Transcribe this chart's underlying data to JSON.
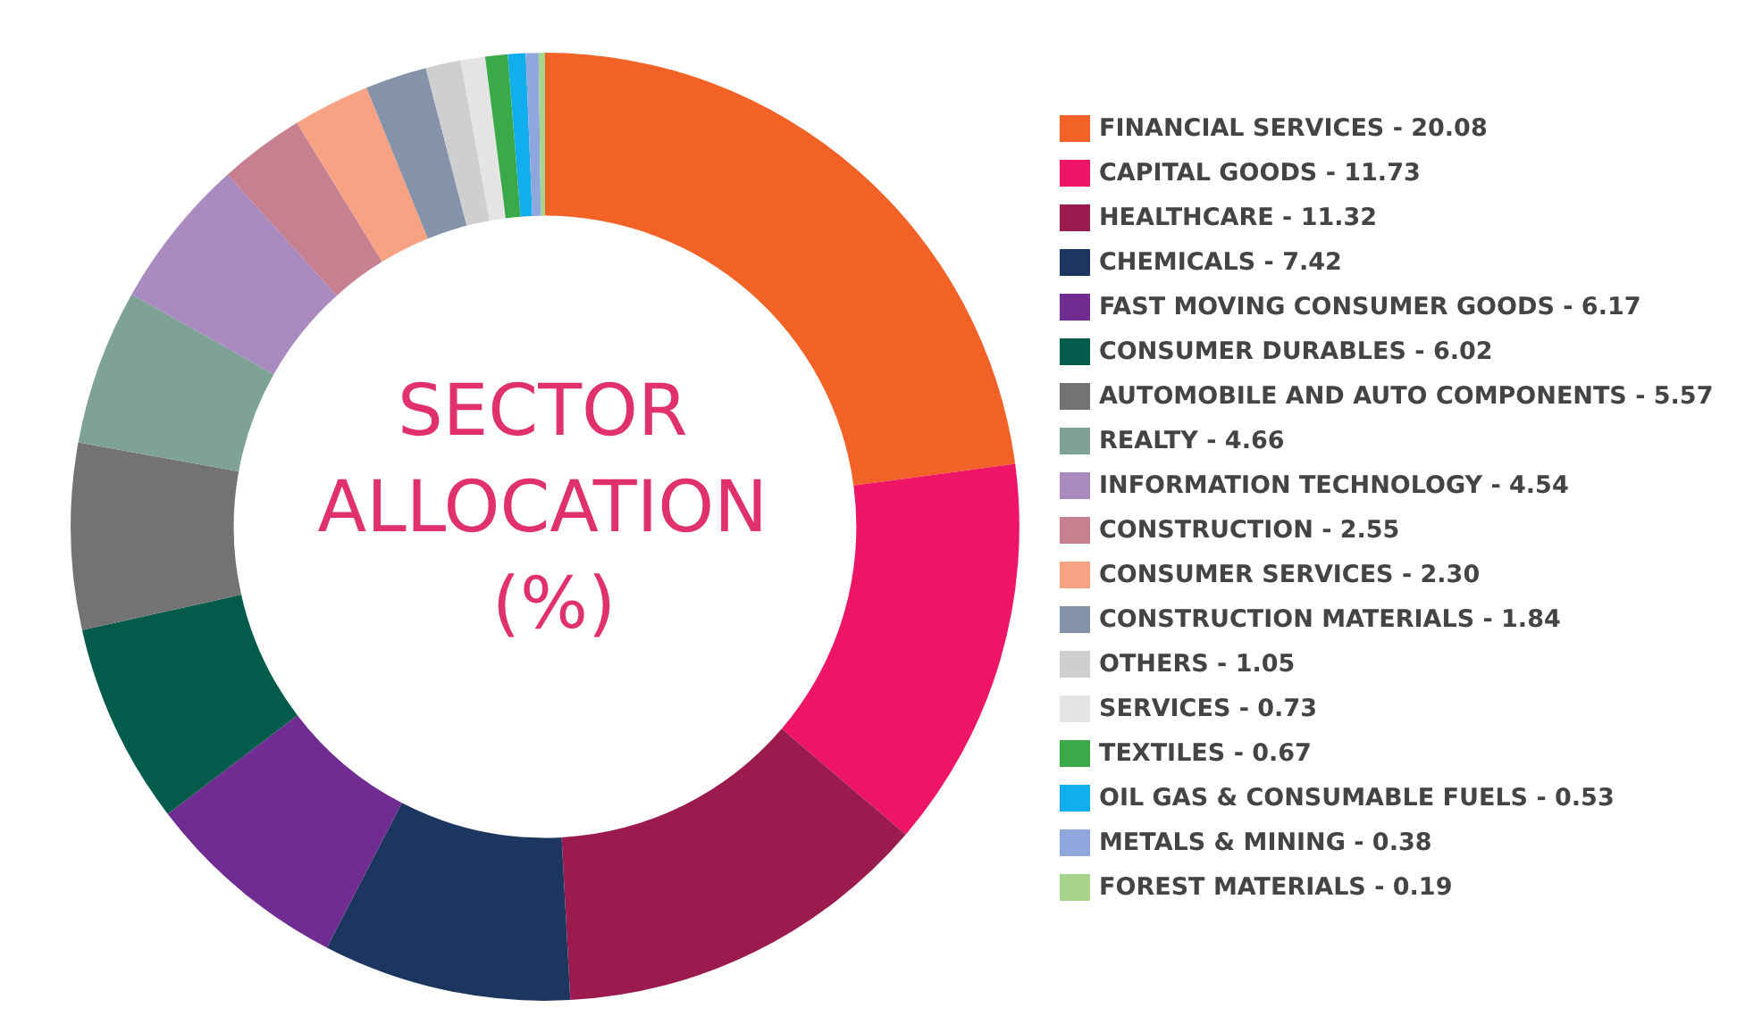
{
  "chart_data": {
    "type": "donut",
    "title": "SECTOR ALLOCATION (%)",
    "categories": [
      "FINANCIAL SERVICES",
      "CAPITAL GOODS",
      "HEALTHCARE",
      "CHEMICALS",
      "FAST MOVING CONSUMER GOODS",
      "CONSUMER DURABLES",
      "AUTOMOBILE AND AUTO COMPONENTS",
      "REALTY",
      "INFORMATION TECHNOLOGY",
      "CONSTRUCTION",
      "CONSUMER SERVICES",
      "CONSTRUCTION MATERIALS",
      "OTHERS",
      "SERVICES",
      "TEXTILES",
      "OIL GAS & CONSUMABLE FUELS",
      "METALS & MINING",
      "FOREST MATERIALS"
    ],
    "values": [
      20.08,
      11.73,
      11.32,
      7.42,
      6.17,
      6.02,
      5.57,
      4.66,
      4.54,
      2.55,
      2.3,
      1.84,
      1.05,
      0.73,
      0.67,
      0.53,
      0.38,
      0.19
    ],
    "value_labels": [
      "20.08",
      "11.73",
      "11.32",
      "7.42",
      "6.17",
      "6.02",
      "5.57",
      "4.66",
      "4.54",
      "2.55",
      "2.30",
      "1.84",
      "1.05",
      "0.73",
      "0.67",
      "0.53",
      "0.38",
      "0.19"
    ],
    "colors": [
      "#f26126",
      "#ee1567",
      "#9b1b4f",
      "#1d3660",
      "#702c90",
      "#035c4b",
      "#737373",
      "#7fa296",
      "#a98bbf",
      "#c6808f",
      "#f7a383",
      "#8493a9",
      "#cfcfcf",
      "#e4e4e4",
      "#3aaa49",
      "#11adec",
      "#8fa7dc",
      "#a7d38d"
    ],
    "legend": "right"
  }
}
